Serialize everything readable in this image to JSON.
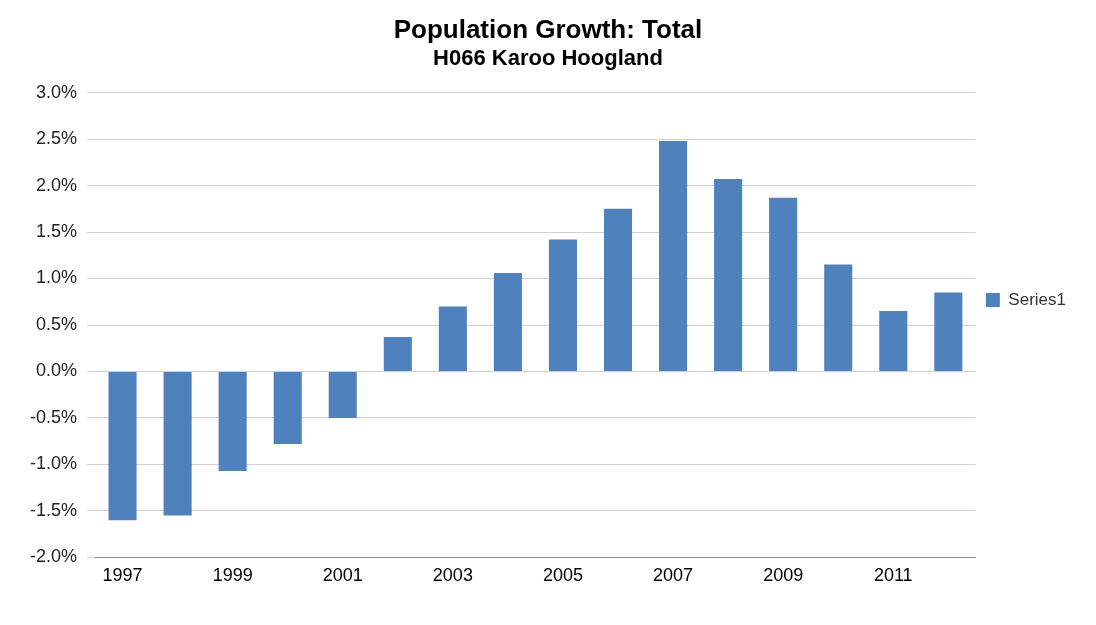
{
  "chart_data": {
    "type": "bar",
    "title": "Population Growth: Total",
    "subtitle": "H066 Karoo Hoogland",
    "categories": [
      "1997",
      null,
      "1999",
      null,
      "2001",
      null,
      "2003",
      null,
      "2005",
      null,
      "2007",
      null,
      "2009",
      null,
      "2011",
      null
    ],
    "series": [
      {
        "name": "Series1",
        "color": "#4f81bd",
        "values": [
          -1.6,
          -1.55,
          -1.07,
          -0.78,
          -0.5,
          0.37,
          0.7,
          1.06,
          1.42,
          1.75,
          2.48,
          2.07,
          1.87,
          1.15,
          0.65,
          0.85
        ]
      }
    ],
    "ylim": [
      -2,
      3
    ],
    "yticks": [
      {
        "value": -2,
        "label": "-2.0%"
      },
      {
        "value": -1.5,
        "label": "-1.5%"
      },
      {
        "value": -1,
        "label": "-1.0%"
      },
      {
        "value": -0.5,
        "label": "-0.5%"
      },
      {
        "value": 0,
        "label": "0.0%"
      },
      {
        "value": 0.5,
        "label": "0.5%"
      },
      {
        "value": 1,
        "label": "1.0%"
      },
      {
        "value": 1.5,
        "label": "1.5%"
      },
      {
        "value": 2,
        "label": "2.0%"
      },
      {
        "value": 2.5,
        "label": "2.5%"
      },
      {
        "value": 3,
        "label": "3.0%"
      }
    ],
    "grid": "y",
    "legend": "right"
  }
}
